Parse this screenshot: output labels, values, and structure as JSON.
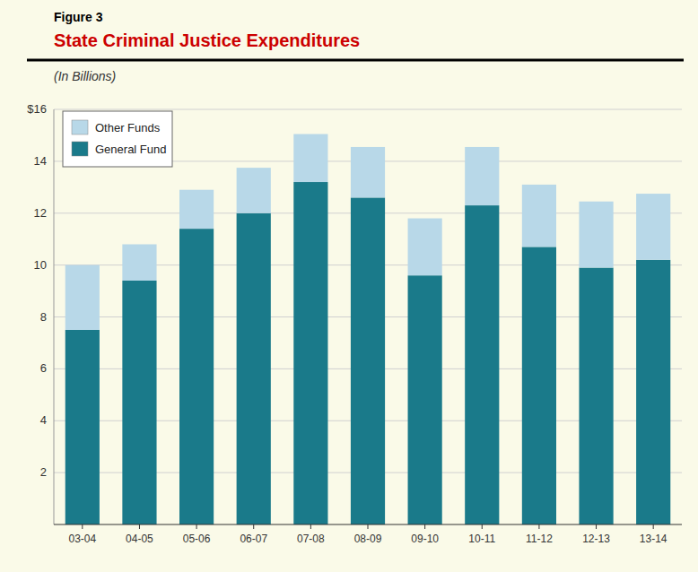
{
  "chart_data": {
    "type": "bar",
    "stacked": true,
    "title": "State Criminal Justice Expenditures",
    "subtitle": "(In Billions)",
    "annotations": [
      "Figure 3"
    ],
    "categories": [
      "03-04",
      "04-05",
      "05-06",
      "06-07",
      "07-08",
      "08-09",
      "09-10",
      "10-11",
      "11-12",
      "12-13",
      "13-14"
    ],
    "series": [
      {
        "name": "General Fund",
        "color": "#1a7a8a",
        "values": [
          7.5,
          9.4,
          11.4,
          12.0,
          13.2,
          12.6,
          9.6,
          12.3,
          10.7,
          9.9,
          10.2
        ]
      },
      {
        "name": "Other Funds",
        "color": "#b8d8e8",
        "values": [
          2.5,
          1.4,
          1.5,
          1.75,
          1.85,
          1.95,
          2.2,
          2.25,
          2.4,
          2.55,
          2.55
        ]
      }
    ],
    "ylim": [
      0,
      16
    ],
    "yticks": [
      2,
      4,
      6,
      8,
      10,
      12,
      14,
      {
        "value": 16,
        "label": "$16"
      }
    ],
    "grid": true,
    "legend": "upper left"
  }
}
